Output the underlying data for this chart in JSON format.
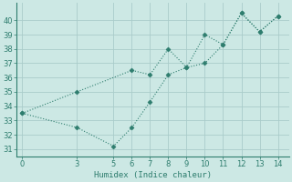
{
  "line1_x": [
    0,
    3,
    6,
    7,
    8,
    9,
    10,
    11,
    12,
    13,
    14
  ],
  "line1_y": [
    33.5,
    35.0,
    36.5,
    36.2,
    38.0,
    36.7,
    39.0,
    38.3,
    40.5,
    39.2,
    40.3
  ],
  "line2_x": [
    0,
    3,
    5,
    6,
    7,
    8,
    9,
    10,
    11,
    12,
    13,
    14
  ],
  "line2_y": [
    33.5,
    32.5,
    31.2,
    32.5,
    34.3,
    36.2,
    36.7,
    37.0,
    38.3,
    40.5,
    39.2,
    40.3
  ],
  "line_color": "#2e7d6e",
  "bg_color": "#cce8e4",
  "grid_color": "#aaccca",
  "xlabel": "Humidex (Indice chaleur)",
  "xticks": [
    0,
    3,
    5,
    6,
    7,
    8,
    9,
    10,
    11,
    12,
    13,
    14
  ],
  "yticks": [
    31,
    32,
    33,
    34,
    35,
    36,
    37,
    38,
    39,
    40
  ],
  "ylim": [
    30.5,
    41.2
  ],
  "xlim": [
    -0.3,
    14.6
  ]
}
